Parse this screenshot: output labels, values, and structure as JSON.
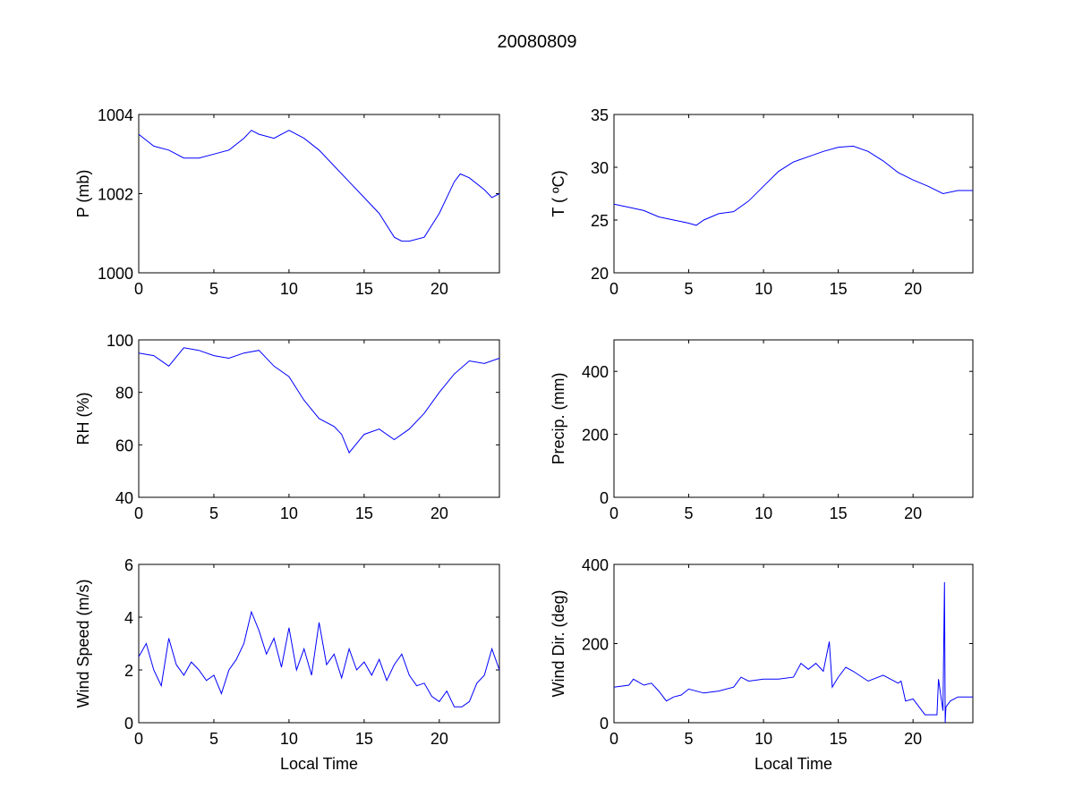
{
  "title": "20080809",
  "line_color": "#0000ff",
  "chart_data": [
    {
      "type": "line",
      "id": "pressure",
      "xlabel": "",
      "ylabel": "P (mb)",
      "xlim": [
        0,
        24
      ],
      "ylim": [
        1000,
        1004
      ],
      "xticks": [
        0,
        5,
        10,
        15,
        20
      ],
      "yticks": [
        1000,
        1002,
        1004
      ],
      "x": [
        0,
        1,
        2,
        3,
        4,
        5,
        6,
        7,
        7.5,
        8,
        9,
        10,
        11,
        12,
        13,
        14,
        15,
        16,
        17,
        17.5,
        18,
        19,
        20,
        21,
        21.4,
        22,
        23,
        23.5,
        24
      ],
      "y": [
        1003.5,
        1003.2,
        1003.1,
        1002.9,
        1002.9,
        1003.0,
        1003.1,
        1003.4,
        1003.6,
        1003.5,
        1003.4,
        1003.6,
        1003.4,
        1003.1,
        1002.7,
        1002.3,
        1001.9,
        1001.5,
        1000.9,
        1000.8,
        1000.8,
        1000.9,
        1001.5,
        1002.3,
        1002.5,
        1002.4,
        1002.1,
        1001.9,
        1002.0
      ]
    },
    {
      "type": "line",
      "id": "temperature",
      "xlabel": "",
      "ylabel": "T ( ºC)",
      "xlim": [
        0,
        24
      ],
      "ylim": [
        20,
        35
      ],
      "xticks": [
        0,
        5,
        10,
        15,
        20
      ],
      "yticks": [
        20,
        25,
        30,
        35
      ],
      "x": [
        0,
        1,
        2,
        3,
        4,
        5,
        5.5,
        6,
        7,
        8,
        9,
        10,
        11,
        12,
        13,
        14,
        15,
        16,
        17,
        18,
        19,
        20,
        21,
        22,
        23,
        24
      ],
      "y": [
        26.5,
        26.2,
        25.9,
        25.3,
        25.0,
        24.7,
        24.5,
        25.0,
        25.6,
        25.8,
        26.8,
        28.2,
        29.6,
        30.5,
        31.0,
        31.5,
        31.9,
        32.0,
        31.5,
        30.6,
        29.5,
        28.8,
        28.2,
        27.5,
        27.8,
        27.8
      ]
    },
    {
      "type": "line",
      "id": "relative-humidity",
      "xlabel": "",
      "ylabel": "RH (%)",
      "xlim": [
        0,
        24
      ],
      "ylim": [
        40,
        100
      ],
      "xticks": [
        0,
        5,
        10,
        15,
        20
      ],
      "yticks": [
        40,
        60,
        80,
        100
      ],
      "x": [
        0,
        1,
        2,
        3,
        4,
        5,
        6,
        7,
        8,
        9,
        10,
        11,
        12,
        13,
        13.5,
        14,
        15,
        16,
        17,
        18,
        19,
        20,
        21,
        22,
        23,
        24
      ],
      "y": [
        95,
        94,
        90,
        97,
        96,
        94,
        93,
        95,
        96,
        90,
        86,
        77,
        70,
        67,
        64,
        57,
        64,
        66,
        62,
        66,
        72,
        80,
        87,
        92,
        91,
        93
      ]
    },
    {
      "type": "line",
      "id": "precipitation",
      "xlabel": "",
      "ylabel": "Precip. (mm)",
      "xlim": [
        0,
        24
      ],
      "ylim": [
        0,
        500
      ],
      "xticks": [
        0,
        5,
        10,
        15,
        20
      ],
      "yticks": [
        0,
        200,
        400
      ],
      "x": [],
      "y": []
    },
    {
      "type": "line",
      "id": "wind-speed",
      "xlabel": "Local Time",
      "ylabel": "Wind Speed (m/s)",
      "xlim": [
        0,
        24
      ],
      "ylim": [
        0,
        6
      ],
      "xticks": [
        0,
        5,
        10,
        15,
        20
      ],
      "yticks": [
        0,
        2,
        4,
        6
      ],
      "x": [
        0,
        0.5,
        1,
        1.5,
        2,
        2.5,
        3,
        3.5,
        4,
        4.5,
        5,
        5.5,
        6,
        6.5,
        7,
        7.5,
        8,
        8.5,
        9,
        9.5,
        10,
        10.5,
        11,
        11.5,
        12,
        12.5,
        13,
        13.5,
        14,
        14.5,
        15,
        15.5,
        16,
        16.5,
        17,
        17.5,
        18,
        18.5,
        19,
        19.5,
        20,
        20.5,
        21,
        21.5,
        22,
        22.5,
        23,
        23.5,
        24
      ],
      "y": [
        2.5,
        3.0,
        2.0,
        1.4,
        3.2,
        2.2,
        1.8,
        2.3,
        2.0,
        1.6,
        1.8,
        1.1,
        2.0,
        2.4,
        3.0,
        4.2,
        3.5,
        2.6,
        3.2,
        2.1,
        3.6,
        2.0,
        2.8,
        1.8,
        3.8,
        2.2,
        2.6,
        1.7,
        2.8,
        2.0,
        2.3,
        1.8,
        2.4,
        1.6,
        2.2,
        2.6,
        1.8,
        1.4,
        1.5,
        1.0,
        0.8,
        1.2,
        0.6,
        0.6,
        0.8,
        1.5,
        1.8,
        2.8,
        2.0
      ]
    },
    {
      "type": "line",
      "id": "wind-direction",
      "xlabel": "Local Time",
      "ylabel": "Wind Dir. (deg)",
      "xlim": [
        0,
        24
      ],
      "ylim": [
        0,
        400
      ],
      "xticks": [
        0,
        5,
        10,
        15,
        20
      ],
      "yticks": [
        0,
        200,
        400
      ],
      "x": [
        0,
        1,
        1.3,
        2,
        2.5,
        3,
        3.5,
        4,
        4.5,
        5,
        6,
        7,
        8,
        8.5,
        9,
        10,
        11,
        12,
        12.5,
        13,
        13.5,
        14,
        14.4,
        14.6,
        15,
        15.5,
        16,
        17,
        18,
        19,
        19.2,
        19.5,
        20,
        20.8,
        21.6,
        21.7,
        22,
        22.1,
        22.15,
        22.2,
        22.5,
        23,
        24
      ],
      "y": [
        90,
        95,
        110,
        95,
        100,
        80,
        55,
        65,
        70,
        85,
        75,
        80,
        90,
        115,
        105,
        110,
        110,
        115,
        150,
        135,
        150,
        130,
        205,
        90,
        115,
        140,
        130,
        105,
        120,
        100,
        105,
        55,
        60,
        20,
        20,
        110,
        30,
        355,
        0,
        40,
        55,
        65,
        65
      ]
    }
  ]
}
